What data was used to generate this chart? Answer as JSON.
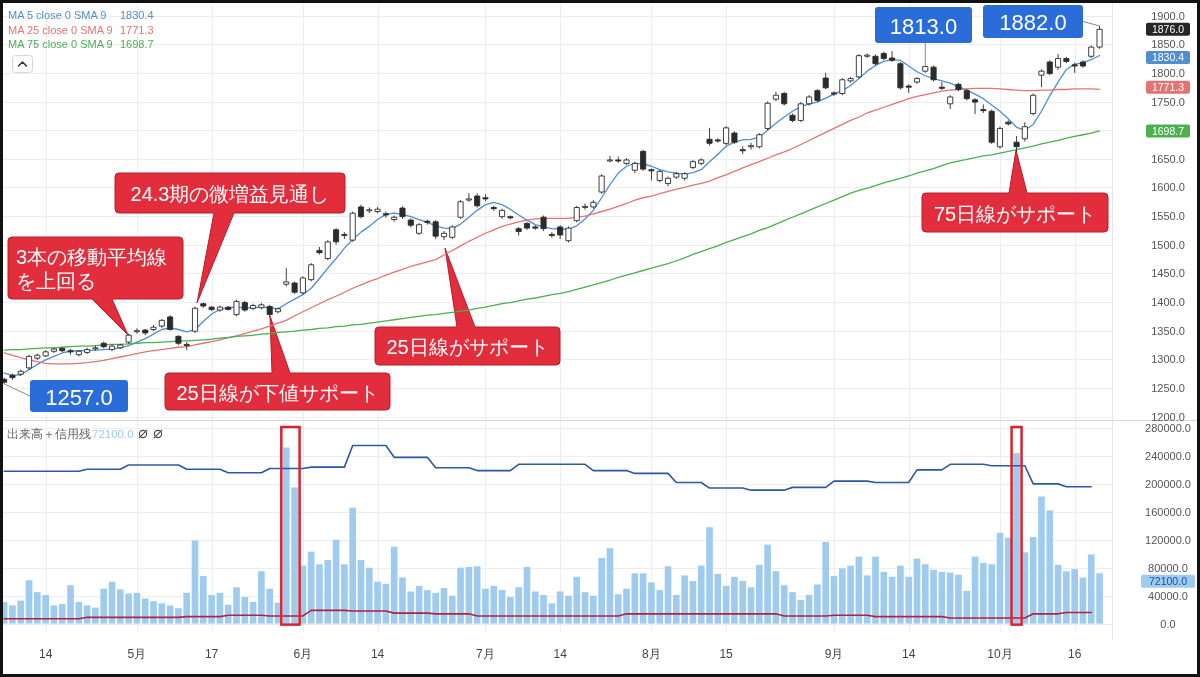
{
  "chart_data": [
    {
      "type": "candlestick",
      "categories": [
        null,
        null,
        null,
        null,
        null,
        null,
        null,
        null,
        null,
        null,
        null,
        null,
        null,
        null,
        null,
        null,
        null,
        null,
        null,
        null,
        null,
        null,
        null,
        null,
        null,
        null,
        null,
        null,
        null,
        null,
        null,
        null,
        null,
        null,
        null,
        null,
        null,
        null,
        null,
        null,
        null,
        null,
        null,
        null,
        null,
        null,
        null,
        null,
        null,
        null,
        null,
        null,
        null,
        null,
        null,
        null,
        null,
        null,
        null,
        null,
        null,
        null,
        null,
        null,
        null,
        null,
        null,
        null,
        null,
        null,
        null,
        null,
        null,
        null,
        null,
        null,
        null,
        null,
        null,
        null,
        null,
        null,
        null,
        null,
        null,
        null,
        null,
        null,
        null,
        null,
        null,
        null,
        null,
        null,
        null,
        null,
        null,
        null,
        null,
        null,
        null,
        null,
        null,
        null,
        null,
        null,
        null,
        null,
        null,
        null,
        null,
        null,
        null,
        null,
        null,
        null,
        null,
        null,
        null,
        null,
        null,
        null,
        null,
        null,
        null,
        null,
        null,
        null,
        null,
        null,
        null,
        null,
        null
      ],
      "ohlc": [
        [
          1265,
          1268,
          1257,
          1260
        ],
        [
          1272,
          1275,
          1264,
          1268
        ],
        [
          1274,
          1282,
          1271,
          1279
        ],
        [
          1285,
          1308,
          1282,
          1305
        ],
        [
          1302,
          1310,
          1299,
          1307
        ],
        [
          1306,
          1316,
          1304,
          1313
        ],
        [
          1314,
          1320,
          1311,
          1318
        ],
        [
          1319,
          1321,
          1312,
          1315
        ],
        [
          1315,
          1318,
          1308,
          1313
        ],
        [
          1308,
          1316,
          1305,
          1314
        ],
        [
          1312,
          1320,
          1309,
          1317
        ],
        [
          1319,
          1324,
          1315,
          1320
        ],
        [
          1328,
          1331,
          1319,
          1322
        ],
        [
          1317,
          1326,
          1314,
          1323
        ],
        [
          1320,
          1327,
          1318,
          1325
        ],
        [
          1330,
          1345,
          1327,
          1342
        ],
        [
          1348,
          1354,
          1345,
          1350
        ],
        [
          1351,
          1353,
          1342,
          1346
        ],
        [
          1352,
          1360,
          1349,
          1356
        ],
        [
          1358,
          1370,
          1355,
          1368
        ],
        [
          1374,
          1377,
          1350,
          1352
        ],
        [
          1340,
          1342,
          1325,
          1328
        ],
        [
          1326,
          1330,
          1316,
          1324
        ],
        [
          1349,
          1392,
          1346,
          1389
        ],
        [
          1397,
          1399,
          1390,
          1393
        ],
        [
          1391,
          1393,
          1384,
          1387
        ],
        [
          1386,
          1394,
          1383,
          1391
        ],
        [
          1391,
          1393,
          1385,
          1387
        ],
        [
          1378,
          1404,
          1375,
          1401
        ],
        [
          1399,
          1402,
          1383,
          1386
        ],
        [
          1389,
          1397,
          1386,
          1394
        ],
        [
          1390,
          1398,
          1387,
          1395
        ],
        [
          1392,
          1395,
          1374,
          1378
        ],
        [
          1383,
          1390,
          1380,
          1388
        ],
        [
          1431,
          1459,
          1427,
          1435
        ],
        [
          1433,
          1436,
          1414,
          1417
        ],
        [
          1416,
          1445,
          1413,
          1442
        ],
        [
          1439,
          1468,
          1436,
          1465
        ],
        [
          1490,
          1496,
          1483,
          1486
        ],
        [
          1476,
          1508,
          1473,
          1505
        ],
        [
          1526,
          1529,
          1500,
          1505
        ],
        [
          1518,
          1522,
          1510,
          1516
        ],
        [
          1508,
          1558,
          1505,
          1555
        ],
        [
          1566,
          1570,
          1546,
          1549
        ],
        [
          1560,
          1565,
          1555,
          1561
        ],
        [
          1558,
          1566,
          1555,
          1562
        ],
        [
          1554,
          1558,
          1547,
          1552
        ],
        [
          1544,
          1551,
          1540,
          1548
        ],
        [
          1564,
          1567,
          1545,
          1549
        ],
        [
          1543,
          1546,
          1530,
          1534
        ],
        [
          1520,
          1538,
          1517,
          1535
        ],
        [
          1541,
          1544,
          1535,
          1539
        ],
        [
          1540,
          1543,
          1510,
          1515
        ],
        [
          1514,
          1524,
          1508,
          1520
        ],
        [
          1513,
          1534,
          1510,
          1531
        ],
        [
          1548,
          1578,
          1545,
          1575
        ],
        [
          1578,
          1590,
          1575,
          1580
        ],
        [
          1585,
          1590,
          1565,
          1568
        ],
        [
          1582,
          1588,
          1576,
          1580
        ],
        [
          1565,
          1568,
          1559,
          1563
        ],
        [
          1549,
          1563,
          1545,
          1560
        ],
        [
          1549,
          1551,
          1544,
          1547
        ],
        [
          1528,
          1531,
          1516,
          1523
        ],
        [
          1537,
          1540,
          1526,
          1529
        ],
        [
          1531,
          1534,
          1526,
          1529
        ],
        [
          1548,
          1551,
          1524,
          1528
        ],
        [
          1518,
          1522,
          1512,
          1516
        ],
        [
          1531,
          1534,
          1510,
          1517
        ],
        [
          1507,
          1532,
          1504,
          1529
        ],
        [
          1542,
          1568,
          1539,
          1565
        ],
        [
          1565,
          1572,
          1561,
          1567
        ],
        [
          1566,
          1578,
          1563,
          1574
        ],
        [
          1592,
          1623,
          1589,
          1620
        ],
        [
          1647,
          1655,
          1644,
          1648
        ],
        [
          1648,
          1654,
          1643,
          1647
        ],
        [
          1642,
          1651,
          1639,
          1648
        ],
        [
          1630,
          1645,
          1625,
          1642
        ],
        [
          1663,
          1666,
          1629,
          1632
        ],
        [
          1631,
          1633,
          1612,
          1629
        ],
        [
          1612,
          1631,
          1609,
          1628
        ],
        [
          1607,
          1619,
          1602,
          1616
        ],
        [
          1618,
          1627,
          1615,
          1624
        ],
        [
          1616,
          1627,
          1612,
          1624
        ],
        [
          1635,
          1648,
          1632,
          1645
        ],
        [
          1642,
          1651,
          1639,
          1648
        ],
        [
          1684,
          1704,
          1673,
          1677
        ],
        [
          1683,
          1686,
          1678,
          1681
        ],
        [
          1677,
          1707,
          1674,
          1704
        ],
        [
          1695,
          1698,
          1676,
          1679
        ],
        [
          1666,
          1672,
          1658,
          1664
        ],
        [
          1671,
          1678,
          1666,
          1673
        ],
        [
          1671,
          1695,
          1668,
          1692
        ],
        [
          1703,
          1750,
          1700,
          1747
        ],
        [
          1754,
          1767,
          1751,
          1761
        ],
        [
          1764,
          1767,
          1743,
          1746
        ],
        [
          1726,
          1729,
          1714,
          1717
        ],
        [
          1717,
          1749,
          1714,
          1746
        ],
        [
          1746,
          1761,
          1743,
          1758
        ],
        [
          1769,
          1772,
          1749,
          1752
        ],
        [
          1791,
          1800,
          1771,
          1774
        ],
        [
          1765,
          1768,
          1760,
          1763
        ],
        [
          1764,
          1791,
          1761,
          1788
        ],
        [
          1786,
          1793,
          1783,
          1790
        ],
        [
          1793,
          1833,
          1790,
          1830
        ],
        [
          1829,
          1834,
          1826,
          1831
        ],
        [
          1829,
          1832,
          1813,
          1816
        ],
        [
          1834,
          1837,
          1822,
          1825
        ],
        [
          1826,
          1838,
          1819,
          1822
        ],
        [
          1816,
          1819,
          1771,
          1774
        ],
        [
          1777,
          1780,
          1765,
          1775
        ],
        [
          1784,
          1793,
          1781,
          1790
        ],
        [
          1803,
          1813,
          1800,
          1811
        ],
        [
          1810,
          1813,
          1785,
          1788
        ],
        [
          1775,
          1784,
          1770,
          1773
        ],
        [
          1746,
          1761,
          1737,
          1758
        ],
        [
          1780,
          1783,
          1768,
          1771
        ],
        [
          1769,
          1772,
          1752,
          1755
        ],
        [
          1753,
          1756,
          1728,
          1749
        ],
        [
          1736,
          1745,
          1730,
          1734
        ],
        [
          1733,
          1736,
          1676,
          1679
        ],
        [
          1671,
          1706,
          1668,
          1703
        ],
        [
          1714,
          1717,
          1708,
          1711
        ],
        [
          1679,
          1690,
          1662,
          1671
        ],
        [
          1685,
          1714,
          1680,
          1706
        ],
        [
          1729,
          1764,
          1726,
          1761
        ],
        [
          1796,
          1806,
          1775,
          1803
        ],
        [
          1819,
          1822,
          1796,
          1799
        ],
        [
          1810,
          1833,
          1805,
          1825
        ],
        [
          1825,
          1828,
          1817,
          1820
        ],
        [
          1814,
          1818,
          1800,
          1812
        ],
        [
          1819,
          1822,
          1809,
          1812
        ],
        [
          1829,
          1848,
          1826,
          1845
        ],
        [
          1845,
          1882,
          1842,
          1876
        ]
      ],
      "series": [
        {
          "name": "MA 5 close 0 SMA 9",
          "type": "line",
          "color": "#4f8fcf",
          "values": [
            1276,
            1272,
            1273,
            1282,
            1291,
            1299,
            1305,
            1311,
            1314,
            1315,
            1315,
            1316,
            1317,
            1318,
            1320,
            1324,
            1330,
            1336,
            1344,
            1352,
            1355,
            1352,
            1348,
            1352,
            1366,
            1379,
            1387,
            1390,
            1391,
            1390,
            1390,
            1391,
            1390,
            1388,
            1397,
            1405,
            1413,
            1424,
            1441,
            1459,
            1476,
            1494,
            1509,
            1522,
            1532,
            1544,
            1553,
            1555,
            1553,
            1549,
            1544,
            1539,
            1533,
            1529,
            1528,
            1536,
            1548,
            1560,
            1570,
            1574,
            1570,
            1562,
            1552,
            1543,
            1535,
            1531,
            1528,
            1527,
            1527,
            1533,
            1545,
            1560,
            1582,
            1605,
            1625,
            1637,
            1642,
            1641,
            1637,
            1631,
            1627,
            1625,
            1623,
            1626,
            1631,
            1645,
            1658,
            1672,
            1679,
            1683,
            1684,
            1688,
            1700,
            1712,
            1723,
            1733,
            1741,
            1746,
            1749,
            1756,
            1763,
            1769,
            1778,
            1790,
            1803,
            1813,
            1820,
            1823,
            1822,
            1812,
            1802,
            1795,
            1790,
            1786,
            1782,
            1776,
            1770,
            1763,
            1755,
            1744,
            1733,
            1720,
            1705,
            1700,
            1710,
            1733,
            1760,
            1784,
            1806,
            1815,
            1818,
            1823,
            1830.4
          ]
        },
        {
          "name": "MA 25 close 0 SMA 9",
          "type": "line",
          "color": "#e27474",
          "values": [
            1311,
            1307,
            1303,
            1299,
            1296,
            1293,
            1292,
            1292,
            1292,
            1293,
            1294,
            1296,
            1298,
            1301,
            1304,
            1307,
            1310,
            1313,
            1315,
            1317,
            1319,
            1321,
            1322,
            1325,
            1328,
            1331,
            1334,
            1338,
            1341,
            1345,
            1349,
            1353,
            1358,
            1363,
            1368,
            1376,
            1383,
            1390,
            1397,
            1404,
            1410,
            1417,
            1424,
            1430,
            1436,
            1441,
            1447,
            1452,
            1457,
            1462,
            1466,
            1470,
            1474,
            1482,
            1490,
            1498,
            1506,
            1513,
            1520,
            1526,
            1532,
            1536,
            1540,
            1543,
            1545,
            1546,
            1546,
            1546,
            1546,
            1548,
            1550,
            1554,
            1558,
            1562,
            1567,
            1572,
            1578,
            1582,
            1585,
            1589,
            1593,
            1597,
            1600,
            1604,
            1607,
            1611,
            1617,
            1622,
            1628,
            1634,
            1640,
            1645,
            1651,
            1657,
            1662,
            1668,
            1675,
            1682,
            1689,
            1696,
            1703,
            1710,
            1717,
            1723,
            1730,
            1735,
            1740,
            1745,
            1750,
            1755,
            1759,
            1762,
            1765,
            1768,
            1770,
            1771,
            1772,
            1773,
            1773,
            1773,
            1772,
            1771,
            1770,
            1769,
            1769,
            1770,
            1770,
            1771,
            1771,
            1772,
            1772,
            1772,
            1771.3
          ]
        },
        {
          "name": "MA 75 close 0 SMA 9",
          "type": "line",
          "color": "#4caf50",
          "values": [
            1316,
            1317,
            1317,
            1318,
            1319,
            1320,
            1320,
            1321,
            1322,
            1323,
            1323,
            1324,
            1325,
            1326,
            1326,
            1327,
            1328,
            1329,
            1329,
            1330,
            1331,
            1332,
            1332,
            1333,
            1334,
            1335,
            1337,
            1338,
            1340,
            1341,
            1342,
            1344,
            1345,
            1347,
            1348,
            1349,
            1351,
            1352,
            1354,
            1355,
            1357,
            1358,
            1360,
            1361,
            1363,
            1365,
            1367,
            1369,
            1371,
            1373,
            1375,
            1377,
            1378,
            1380,
            1382,
            1384,
            1386,
            1389,
            1391,
            1394,
            1397,
            1399,
            1402,
            1405,
            1407,
            1410,
            1413,
            1415,
            1418,
            1422,
            1426,
            1430,
            1434,
            1438,
            1443,
            1447,
            1451,
            1455,
            1459,
            1463,
            1467,
            1472,
            1477,
            1483,
            1488,
            1493,
            1498,
            1504,
            1509,
            1514,
            1519,
            1525,
            1530,
            1536,
            1542,
            1548,
            1554,
            1560,
            1566,
            1572,
            1578,
            1584,
            1590,
            1595,
            1599,
            1603,
            1608,
            1612,
            1616,
            1620,
            1625,
            1629,
            1633,
            1638,
            1643,
            1646,
            1649,
            1652,
            1655,
            1657,
            1660,
            1663,
            1666,
            1669,
            1672,
            1676,
            1679,
            1682,
            1686,
            1689,
            1692,
            1695,
            1698.7
          ]
        }
      ],
      "ylim": [
        1194,
        1922
      ],
      "yticks": [
        {
          "value": 1200,
          "label": "1200.0"
        },
        {
          "value": 1250,
          "label": "1250.0"
        },
        {
          "value": 1300,
          "label": "1300.0"
        },
        {
          "value": 1350,
          "label": "1350.0"
        },
        {
          "value": 1400,
          "label": "1400.0"
        },
        {
          "value": 1450,
          "label": "1450.0"
        },
        {
          "value": 1500,
          "label": "1500.0"
        },
        {
          "value": 1550,
          "label": "1550.0"
        },
        {
          "value": 1600,
          "label": "1600.0"
        },
        {
          "value": 1650,
          "label": "1650.0"
        },
        {
          "value": 1700,
          "label": null
        },
        {
          "value": 1750,
          "label": "1750.0"
        },
        {
          "value": 1800,
          "label": "1800.0"
        },
        {
          "value": 1850,
          "label": "1850.0"
        },
        {
          "value": 1900,
          "label": "1900.0"
        }
      ],
      "grid": true,
      "legend": "top left",
      "tick_labels": "y",
      "annotations": [
        "1830.4",
        "1771.3",
        "1698.7",
        "1876.0",
        "1830.4",
        "1771.3",
        "1698.7",
        "1257.0",
        "1813.0",
        "1882.0",
        "3本の移動平均線を上回る",
        "24.3期の微増益見通し",
        "25日線が下値サポート",
        "25日線がサポート",
        "75日線がサポート"
      ]
    },
    {
      "type": "bar",
      "title": "出来高＋信用残",
      "categories": [
        null,
        null,
        null,
        null,
        null,
        "14",
        null,
        null,
        null,
        null,
        null,
        null,
        null,
        null,
        null,
        null,
        "5月",
        null,
        null,
        null,
        null,
        null,
        null,
        null,
        null,
        "17",
        null,
        null,
        null,
        null,
        null,
        null,
        null,
        null,
        null,
        null,
        "6月",
        null,
        null,
        null,
        null,
        null,
        null,
        null,
        null,
        "14",
        null,
        null,
        null,
        null,
        null,
        null,
        null,
        null,
        null,
        null,
        null,
        null,
        "7月",
        null,
        null,
        null,
        null,
        null,
        null,
        null,
        null,
        "14",
        null,
        null,
        null,
        null,
        null,
        null,
        null,
        null,
        null,
        null,
        "8月",
        null,
        null,
        null,
        null,
        null,
        null,
        null,
        null,
        "15",
        null,
        null,
        null,
        null,
        null,
        null,
        null,
        null,
        null,
        null,
        null,
        null,
        "9月",
        null,
        null,
        null,
        null,
        null,
        null,
        null,
        null,
        "14",
        null,
        null,
        null,
        null,
        null,
        null,
        null,
        null,
        null,
        null,
        "10月",
        null,
        null,
        null,
        null,
        null,
        null,
        null,
        null,
        "16",
        null,
        null,
        null
      ],
      "series": [
        {
          "type": "bar",
          "color": "#9fcbef",
          "values": [
            31000,
            26000,
            33000,
            62000,
            45000,
            41000,
            26000,
            28000,
            55000,
            31000,
            26000,
            23000,
            50000,
            60000,
            49000,
            43000,
            44000,
            36000,
            32000,
            29000,
            26000,
            22000,
            44000,
            119000,
            68000,
            41000,
            44000,
            27000,
            52000,
            38000,
            31000,
            75000,
            50000,
            30000,
            252000,
            195000,
            83000,
            103000,
            85000,
            91000,
            120000,
            85000,
            166000,
            91000,
            80000,
            60000,
            57000,
            110000,
            66000,
            46000,
            54000,
            48000,
            44000,
            51000,
            40000,
            80000,
            81000,
            82000,
            50000,
            54000,
            48000,
            38000,
            52000,
            81000,
            46000,
            41000,
            29000,
            46000,
            40000,
            67000,
            45000,
            40000,
            94000,
            108000,
            42000,
            50000,
            72000,
            72000,
            59000,
            48000,
            82000,
            41000,
            69000,
            61000,
            83000,
            138000,
            71000,
            54000,
            67000,
            61000,
            52000,
            84000,
            113000,
            75000,
            55000,
            45000,
            34000,
            41000,
            56000,
            117000,
            68000,
            79000,
            83000,
            96000,
            69000,
            96000,
            74000,
            67000,
            83000,
            67000,
            93000,
            85000,
            77000,
            74000,
            73000,
            70000,
            47000,
            96000,
            87000,
            85000,
            130000,
            123000,
            244000,
            102000,
            124000,
            182000,
            162000,
            84000,
            75000,
            78000,
            66000,
            99000,
            72100
          ]
        },
        {
          "type": "line",
          "color": "#2c58a6",
          "values": [
            218000,
            218000,
            218000,
            218000,
            218000,
            218000,
            218000,
            218000,
            218000,
            218000,
            221000,
            221000,
            221000,
            221000,
            221000,
            227000,
            227000,
            227000,
            227000,
            227000,
            227000,
            227000,
            221000,
            221000,
            221000,
            221000,
            221000,
            216000,
            216000,
            216000,
            216000,
            216000,
            222000,
            222000,
            222000,
            222000,
            222000,
            224000,
            224000,
            224000,
            224000,
            224000,
            255000,
            255000,
            255000,
            255000,
            255000,
            238000,
            238000,
            238000,
            238000,
            238000,
            223000,
            223000,
            223000,
            223000,
            223000,
            219000,
            219000,
            219000,
            219000,
            219000,
            228000,
            228000,
            228000,
            228000,
            228000,
            228000,
            228000,
            228000,
            228000,
            219000,
            219000,
            219000,
            219000,
            219000,
            215000,
            215000,
            215000,
            215000,
            215000,
            202000,
            202000,
            202000,
            202000,
            194000,
            194000,
            194000,
            194000,
            194000,
            191000,
            191000,
            191000,
            191000,
            191000,
            195000,
            195000,
            195000,
            195000,
            195000,
            204000,
            204000,
            204000,
            204000,
            204000,
            202000,
            202000,
            202000,
            202000,
            202000,
            220000,
            220000,
            220000,
            220000,
            228000,
            228000,
            228000,
            228000,
            228000,
            226000,
            226000,
            226000,
            226000,
            226000,
            200000,
            200000,
            200000,
            200000,
            196000,
            196000,
            196000,
            196000,
            null
          ]
        },
        {
          "type": "line",
          "color": "#b3213f",
          "values": [
            7000,
            7000,
            7000,
            7000,
            7000,
            7000,
            7000,
            7000,
            7000,
            7000,
            9000,
            9000,
            9000,
            9000,
            9000,
            9000,
            9000,
            9000,
            9000,
            9000,
            9000,
            9000,
            10000,
            10000,
            10000,
            10000,
            10000,
            12000,
            12000,
            12000,
            12000,
            12000,
            11000,
            11000,
            11000,
            11000,
            11000,
            19000,
            19000,
            19000,
            19000,
            19000,
            18000,
            18000,
            18000,
            18000,
            18000,
            15000,
            15000,
            15000,
            15000,
            15000,
            14000,
            14000,
            14000,
            14000,
            14000,
            11000,
            11000,
            11000,
            11000,
            11000,
            11000,
            11000,
            11000,
            11000,
            11000,
            11000,
            11000,
            11000,
            11000,
            11000,
            11000,
            11000,
            11000,
            14000,
            14000,
            14000,
            14000,
            14000,
            14000,
            14000,
            14000,
            14000,
            14000,
            14000,
            14000,
            14000,
            14000,
            14000,
            14000,
            14000,
            14000,
            14000,
            11000,
            11000,
            11000,
            11000,
            11000,
            11000,
            12000,
            12000,
            12000,
            12000,
            12000,
            10000,
            10000,
            10000,
            10000,
            10000,
            10000,
            10000,
            10000,
            10000,
            8000,
            8000,
            8000,
            8000,
            8000,
            8000,
            8000,
            8000,
            8000,
            8000,
            14000,
            14000,
            14000,
            14000,
            16000,
            16000,
            16000,
            16000,
            null
          ]
        }
      ],
      "ylim": [
        -12000,
        290000
      ],
      "yticks": [
        {
          "value": 0,
          "label": "0.0"
        },
        {
          "value": 40000,
          "label": "40000.0"
        },
        {
          "value": 80000,
          "label": "80000.0"
        },
        {
          "value": 120000,
          "label": "120000.0"
        },
        {
          "value": 160000,
          "label": "160000.0"
        },
        {
          "value": 200000,
          "label": "200000.0"
        },
        {
          "value": 240000,
          "label": "240000.0"
        },
        {
          "value": 280000,
          "label": "280000.0"
        }
      ],
      "grid": true,
      "annotations": [
        "72100.0",
        "72100.0"
      ]
    }
  ]
}
